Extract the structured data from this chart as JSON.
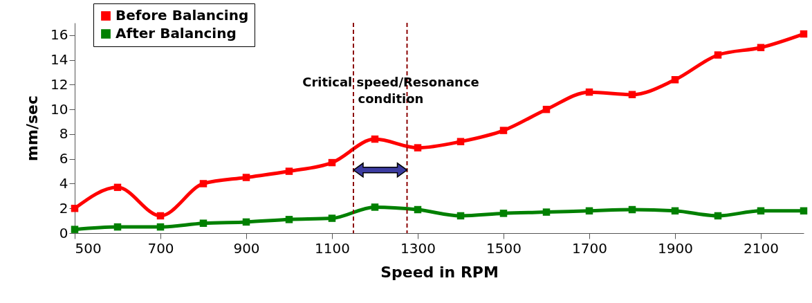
{
  "chart_data": {
    "type": "line",
    "xlabel": "Speed in RPM",
    "ylabel": "mm/sec",
    "x": [
      500,
      600,
      700,
      800,
      900,
      1000,
      1100,
      1200,
      1300,
      1400,
      1500,
      1600,
      1700,
      1800,
      1900,
      2000,
      2100,
      2200
    ],
    "series": [
      {
        "name": "Before Balancing",
        "color": "#ff0000",
        "values": [
          2.0,
          3.7,
          1.4,
          4.0,
          4.5,
          5.0,
          5.7,
          7.6,
          6.9,
          7.4,
          8.3,
          10.0,
          11.4,
          11.2,
          12.4,
          14.4,
          15.0,
          16.1
        ]
      },
      {
        "name": "After Balancing",
        "color": "#008000",
        "values": [
          0.3,
          0.5,
          0.5,
          0.8,
          0.9,
          1.1,
          1.2,
          2.1,
          1.9,
          1.4,
          1.6,
          1.7,
          1.8,
          1.9,
          1.8,
          1.4,
          1.8,
          1.8
        ]
      }
    ],
    "xlim": [
      500,
      2200
    ],
    "xticks": [
      500,
      700,
      900,
      1100,
      1300,
      1500,
      1700,
      1900,
      2100
    ],
    "ylim": [
      0,
      17
    ],
    "yticks": [
      0,
      2,
      4,
      6,
      8,
      10,
      12,
      14,
      16
    ],
    "ref_lines": [
      {
        "axis": "x",
        "value": 1150,
        "color": "#8b0000",
        "line_style": "dashed"
      },
      {
        "axis": "x",
        "value": 1275,
        "color": "#8b0000",
        "line_style": "dashed"
      }
    ],
    "annotations": [
      "Critical speed/Resonance\ncondition"
    ],
    "grid": false,
    "legend": "top left",
    "marker": "square",
    "line_style": "solid"
  }
}
